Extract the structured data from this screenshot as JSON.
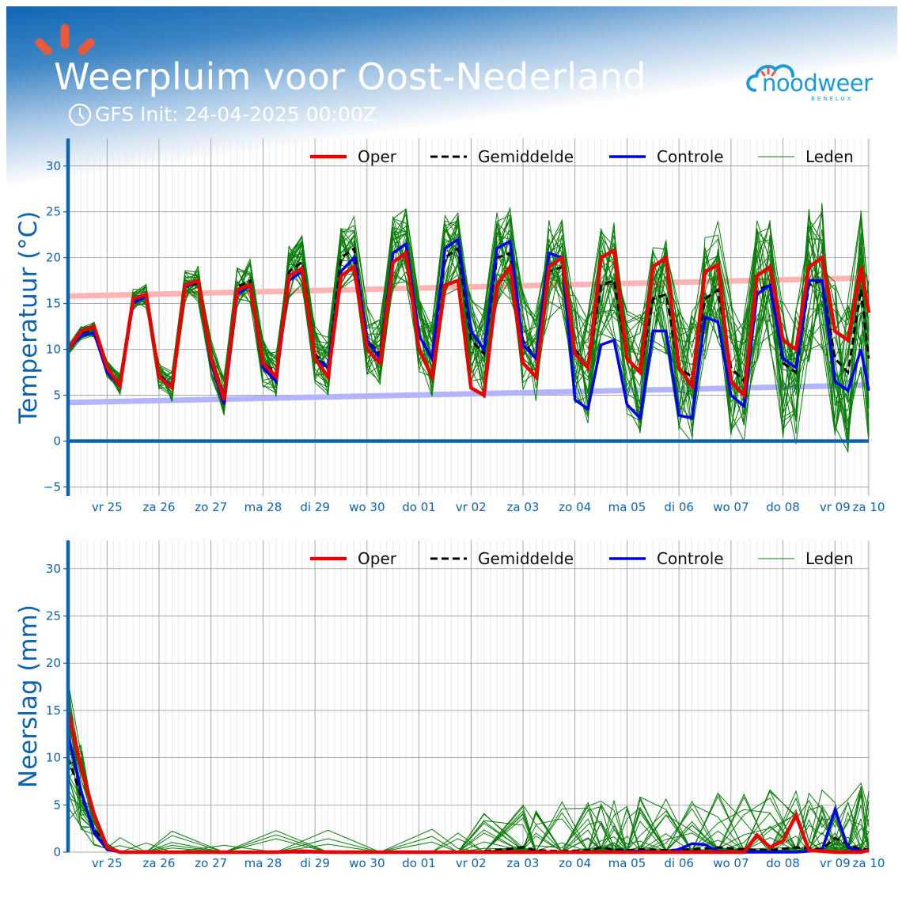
{
  "header": {
    "title": "Weerpluim voor Oost-Nederland",
    "subtitle": "GFS Init: 24-04-2025 00:00Z",
    "logo_text": "noodweer",
    "logo_sub": "BENELUX"
  },
  "colors": {
    "oper": "#ee0000",
    "mean": "#000000",
    "control": "#0000ee",
    "members": "#0a7d0a",
    "axis": "#0b63b0",
    "normal_max": "#ffb3b3",
    "normal_min": "#b3b3ff"
  },
  "chart_data": [
    {
      "type": "line",
      "title": "",
      "ylabel": "Temperatuur (°C)",
      "ylim": [
        -6,
        33
      ],
      "yticks": [
        -5,
        0,
        5,
        10,
        15,
        20,
        25,
        30
      ],
      "ytick_labels": [
        "−5",
        "0",
        "5",
        "10",
        "15",
        "20",
        "25",
        "30"
      ],
      "xlim": [
        0,
        15.4
      ],
      "xticks": [
        0.75,
        1.75,
        2.75,
        3.75,
        4.75,
        5.75,
        6.75,
        7.75,
        8.75,
        9.75,
        10.75,
        11.75,
        12.75,
        13.75,
        14.75,
        15.4
      ],
      "xtick_labels": [
        "vr 25",
        "za 26",
        "zo 27",
        "ma 28",
        "di 29",
        "wo 30",
        "do 01",
        "vr 02",
        "za 03",
        "zo 04",
        "ma 05",
        "di 06",
        "wo 07",
        "do 08",
        "vr 09",
        "za 10"
      ],
      "legend": [
        "Oper",
        "Gemiddelde",
        "Controle",
        "Leden"
      ],
      "legend_position": "top-right",
      "series": [
        {
          "name": "Oper",
          "x": [
            0,
            0.25,
            0.5,
            0.75,
            1.0,
            1.25,
            1.5,
            1.75,
            2.0,
            2.25,
            2.5,
            2.75,
            3.0,
            3.25,
            3.5,
            3.75,
            4.0,
            4.25,
            4.5,
            4.75,
            5.0,
            5.25,
            5.5,
            5.75,
            6.0,
            6.25,
            6.5,
            6.75,
            7.0,
            7.25,
            7.5,
            7.75,
            8.0,
            8.25,
            8.5,
            8.75,
            9.0,
            9.25,
            9.5,
            9.75,
            10.0,
            10.25,
            10.5,
            10.75,
            11.0,
            11.25,
            11.5,
            11.75,
            12.0,
            12.25,
            12.5,
            12.75,
            13.0,
            13.25,
            13.5,
            13.75,
            14.0,
            14.25,
            14.5,
            14.75,
            15.0,
            15.25,
            15.4
          ],
          "values": [
            10.0,
            12.0,
            12.5,
            8.0,
            6.0,
            15.5,
            16.0,
            7.0,
            5.8,
            17.0,
            17.5,
            9.0,
            4.5,
            16.5,
            17.0,
            8.5,
            7.0,
            18.0,
            18.8,
            9.0,
            7.0,
            18.0,
            19.0,
            10.0,
            8.5,
            19.5,
            20.5,
            10.0,
            7.0,
            17.0,
            17.5,
            5.8,
            5.0,
            17.0,
            19.0,
            8.5,
            7.0,
            19.0,
            20.0,
            9.5,
            8.0,
            20.0,
            20.8,
            9.0,
            7.5,
            19.0,
            20.0,
            8.0,
            6.0,
            18.5,
            19.2,
            6.5,
            5.0,
            18.0,
            19.0,
            11.0,
            10.0,
            19.0,
            20.0,
            12.0,
            11.0,
            19.0,
            14.0
          ]
        },
        {
          "name": "Gemiddelde",
          "x": [
            0,
            0.25,
            0.5,
            0.75,
            1.0,
            1.25,
            1.5,
            1.75,
            2.0,
            2.25,
            2.5,
            2.75,
            3.0,
            3.25,
            3.5,
            3.75,
            4.0,
            4.25,
            4.5,
            4.75,
            5.0,
            5.25,
            5.5,
            5.75,
            6.0,
            6.25,
            6.5,
            6.75,
            7.0,
            7.25,
            7.5,
            7.75,
            8.0,
            8.25,
            8.5,
            8.75,
            9.0,
            9.25,
            9.5,
            9.75,
            10.0,
            10.25,
            10.5,
            10.75,
            11.0,
            11.25,
            11.5,
            11.75,
            12.0,
            12.25,
            12.5,
            12.75,
            13.0,
            13.25,
            13.5,
            13.75,
            14.0,
            14.25,
            14.5,
            14.75,
            15.0,
            15.25,
            15.4
          ],
          "values": [
            10.0,
            11.8,
            12.2,
            7.8,
            6.2,
            15.3,
            15.8,
            7.2,
            6.0,
            16.8,
            17.2,
            9.0,
            5.0,
            16.8,
            17.5,
            8.5,
            7.5,
            18.5,
            19.5,
            9.5,
            8.0,
            20.0,
            21.0,
            11.0,
            9.5,
            20.5,
            21.5,
            11.5,
            9.0,
            20.0,
            21.0,
            11.0,
            9.5,
            20.0,
            20.5,
            11.0,
            9.0,
            18.5,
            19.0,
            10.0,
            8.0,
            17.0,
            17.5,
            9.0,
            7.5,
            15.5,
            16.0,
            8.0,
            7.0,
            15.5,
            16.5,
            8.0,
            6.5,
            16.5,
            17.0,
            8.5,
            7.5,
            17.0,
            17.5,
            9.0,
            7.5,
            16.5,
            9.0
          ]
        },
        {
          "name": "Controle",
          "x": [
            0,
            0.25,
            0.5,
            0.75,
            1.0,
            1.25,
            1.5,
            1.75,
            2.0,
            2.25,
            2.5,
            2.75,
            3.0,
            3.25,
            3.5,
            3.75,
            4.0,
            4.25,
            4.5,
            4.75,
            5.0,
            5.25,
            5.5,
            5.75,
            6.0,
            6.25,
            6.5,
            6.75,
            7.0,
            7.25,
            7.5,
            7.75,
            8.0,
            8.25,
            8.5,
            8.75,
            9.0,
            9.25,
            9.5,
            9.75,
            10.0,
            10.25,
            10.5,
            10.75,
            11.0,
            11.25,
            11.5,
            11.75,
            12.0,
            12.25,
            12.5,
            12.75,
            13.0,
            13.25,
            13.5,
            13.75,
            14.0,
            14.25,
            14.5,
            14.75,
            15.0,
            15.25,
            15.4
          ],
          "values": [
            10.0,
            11.5,
            11.8,
            7.5,
            6.0,
            15.0,
            15.8,
            7.0,
            6.0,
            16.8,
            17.5,
            8.5,
            4.0,
            16.0,
            17.0,
            8.0,
            6.5,
            17.5,
            18.5,
            9.0,
            8.0,
            18.5,
            20.0,
            11.0,
            9.0,
            20.5,
            21.5,
            11.5,
            9.0,
            21.0,
            22.0,
            12.0,
            10.0,
            21.0,
            21.8,
            10.5,
            9.0,
            20.5,
            20.0,
            4.5,
            3.5,
            10.5,
            11.0,
            4.0,
            2.5,
            12.0,
            12.0,
            2.8,
            2.5,
            13.5,
            13.0,
            5.0,
            3.8,
            16.0,
            17.0,
            9.0,
            8.0,
            17.5,
            17.5,
            6.5,
            5.5,
            10.0,
            5.5
          ]
        },
        {
          "name": "Leden",
          "x": [],
          "values": []
        }
      ],
      "normal_max": {
        "x": [
          0,
          15.4
        ],
        "values": [
          15.8,
          17.8
        ]
      },
      "normal_min": {
        "x": [
          0,
          15.4
        ],
        "values": [
          4.2,
          6.1
        ]
      }
    },
    {
      "type": "line",
      "title": "",
      "ylabel": "Neerslag (mm)",
      "ylim": [
        0,
        33
      ],
      "yticks": [
        0,
        5,
        10,
        15,
        20,
        25,
        30
      ],
      "ytick_labels": [
        "0",
        "5",
        "10",
        "15",
        "20",
        "25",
        "30"
      ],
      "xlim": [
        0,
        15.4
      ],
      "xticks": [
        0.75,
        1.75,
        2.75,
        3.75,
        4.75,
        5.75,
        6.75,
        7.75,
        8.75,
        9.75,
        10.75,
        11.75,
        12.75,
        13.75,
        14.75,
        15.4
      ],
      "xtick_labels": [
        "vr 25",
        "za 26",
        "zo 27",
        "ma 28",
        "di 29",
        "wo 30",
        "do 01",
        "vr 02",
        "za 03",
        "zo 04",
        "ma 05",
        "di 06",
        "wo 07",
        "do 08",
        "vr 09",
        "za 10"
      ],
      "legend": [
        "Oper",
        "Gemiddelde",
        "Controle",
        "Leden"
      ],
      "legend_position": "top-right",
      "series": [
        {
          "name": "Oper",
          "x": [
            0,
            0.25,
            0.5,
            0.75,
            1.0,
            1.5,
            2.0,
            3.0,
            4.0,
            4.5,
            5.0,
            6.0,
            7.0,
            8.0,
            9.0,
            10.0,
            11.0,
            12.0,
            13.0,
            13.25,
            13.5,
            13.75,
            14.0,
            14.25,
            14.5,
            14.75,
            15.0,
            15.25,
            15.4
          ],
          "values": [
            15.0,
            9.0,
            4.0,
            0.5,
            0.0,
            0.0,
            0.0,
            0.0,
            0.0,
            0.1,
            0.0,
            0.0,
            0.0,
            0.0,
            0.0,
            0.0,
            0.0,
            0.0,
            0.0,
            1.8,
            0.5,
            1.2,
            3.9,
            0.2,
            0.1,
            0.0,
            0.0,
            0.0,
            0.2
          ]
        },
        {
          "name": "Gemiddelde",
          "x": [
            0,
            0.25,
            0.5,
            0.75,
            1.0,
            1.5,
            2.0,
            3.0,
            4.0,
            5.0,
            6.0,
            7.0,
            7.5,
            8.0,
            8.75,
            9.0,
            9.5,
            10.0,
            10.25,
            10.5,
            10.75,
            11.0,
            11.5,
            12.0,
            12.5,
            13.0,
            13.5,
            14.0,
            14.25,
            14.5,
            14.75,
            15.0,
            15.25,
            15.4
          ],
          "values": [
            10.0,
            6.0,
            2.5,
            0.5,
            0.0,
            0.0,
            0.0,
            0.0,
            0.0,
            0.0,
            0.0,
            0.0,
            0.0,
            0.1,
            0.5,
            0.2,
            0.1,
            0.2,
            0.5,
            0.3,
            0.2,
            0.3,
            0.2,
            0.3,
            0.5,
            0.3,
            0.2,
            0.5,
            0.4,
            0.3,
            1.5,
            0.8,
            0.3,
            0.3
          ]
        },
        {
          "name": "Controle",
          "x": [
            0,
            0.25,
            0.5,
            0.75,
            1.0,
            1.5,
            2.0,
            3.0,
            4.0,
            5.0,
            6.0,
            7.0,
            8.0,
            9.0,
            10.0,
            11.0,
            11.5,
            11.75,
            12.0,
            12.25,
            12.5,
            13.0,
            14.0,
            14.25,
            14.5,
            14.75,
            15.0,
            15.25,
            15.4
          ],
          "values": [
            12.5,
            6.5,
            2.0,
            0.3,
            0.0,
            0.0,
            0.0,
            0.0,
            0.0,
            0.0,
            0.0,
            0.0,
            0.0,
            0.0,
            0.0,
            0.1,
            0.0,
            0.3,
            0.9,
            0.8,
            0.1,
            0.0,
            0.0,
            0.1,
            0.2,
            4.5,
            0.5,
            0.1,
            0.1
          ]
        },
        {
          "name": "Leden",
          "x": [],
          "values": []
        }
      ]
    }
  ]
}
